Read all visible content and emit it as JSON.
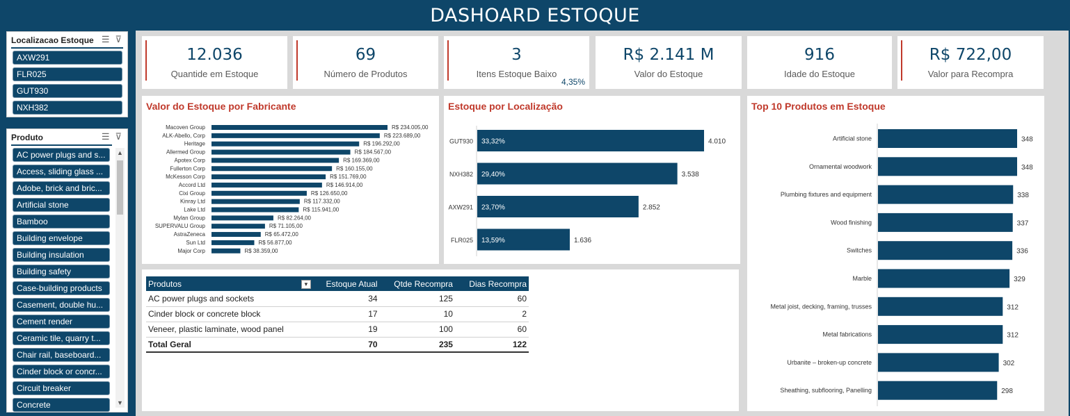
{
  "title": "DASHOARD ESTOQUE",
  "colors": {
    "navy": "#0e4669",
    "accent_red": "#c0392b"
  },
  "kpis": [
    {
      "value": "12.036",
      "label": "Quantide em Estoque",
      "accent": true
    },
    {
      "value": "69",
      "label": "Número de Produtos",
      "accent": true
    },
    {
      "value": "3",
      "label": "Itens Estoque Baixo",
      "sub": "4,35%",
      "accent": true
    },
    {
      "value": "R$ 2.141 M",
      "label": "Valor do Estoque",
      "accent": false
    },
    {
      "value": "916",
      "label": "Idade do Estoque",
      "accent": false
    },
    {
      "value": "R$ 722,00",
      "label": "Valor para Recompra",
      "accent": true
    }
  ],
  "slicer_location": {
    "header": "Localizacao Estoque",
    "items": [
      "AXW291",
      "FLR025",
      "GUT930",
      "NXH382"
    ]
  },
  "slicer_product": {
    "header": "Produto",
    "items": [
      "AC power plugs and s...",
      "Access, sliding glass ...",
      "Adobe, brick and bric...",
      "Artificial stone",
      "Bamboo",
      "Building envelope",
      "Building insulation",
      "Building safety",
      "Case-building products",
      "Casement, double hu...",
      "Cement render",
      "Ceramic tile, quarry t...",
      "Chair rail, baseboard...",
      "Cinder block or concr...",
      "Circuit breaker",
      "Concrete"
    ]
  },
  "table": {
    "headers": [
      "Produtos",
      "Estoque Atual",
      "Qtde Recompra",
      "Dias Recompra"
    ],
    "rows": [
      [
        "AC power plugs and sockets",
        "34",
        "125",
        "60"
      ],
      [
        "Cinder block or concrete block",
        "17",
        "10",
        "2"
      ],
      [
        "Veneer, plastic laminate, wood panel",
        "19",
        "100",
        "60"
      ]
    ],
    "total": [
      "Total Geral",
      "70",
      "235",
      "122"
    ]
  },
  "chart_data": [
    {
      "type": "bar",
      "orientation": "horizontal",
      "title": "Valor do Estoque por Fabricante",
      "categories": [
        "Macoven Group",
        "ALK-Abello, Corp",
        "Heritage",
        "Allermed Group",
        "Apotex Corp",
        "Fullerton Corp",
        "McKesson Corp",
        "Accord Ltd",
        "Cixi Group",
        "Kinray Ltd",
        "Lake Ltd",
        "Mylan Group",
        "SUPERVALU Group",
        "AstraZeneca",
        "Sun Ltd",
        "Major Corp"
      ],
      "values": [
        234005,
        223689,
        196292,
        184567,
        169369,
        160155,
        151769,
        146914,
        126650,
        117332,
        115941,
        82264,
        71105,
        65472,
        56877,
        38359
      ],
      "data_labels": [
        "R$ 234.005,00",
        "R$ 223.689,00",
        "R$ 196.292,00",
        "R$ 184.567,00",
        "R$ 169.369,00",
        "R$ 160.155,00",
        "R$ 151.769,00",
        "R$ 146.914,00",
        "R$ 126.650,00",
        "R$ 117.332,00",
        "R$ 115.941,00",
        "R$ 82.264,00",
        "R$ 71.105,00",
        "R$ 65.472,00",
        "R$ 56.877,00",
        "R$ 38.359,00"
      ],
      "color": "#0e4669"
    },
    {
      "type": "bar",
      "orientation": "horizontal",
      "title": "Estoque por Localização",
      "categories": [
        "GUT930",
        "NXH382",
        "AXW291",
        "FLR025"
      ],
      "values": [
        4010,
        3538,
        2852,
        1636
      ],
      "data_labels": [
        "4.010",
        "3.538",
        "2.852",
        "1.636"
      ],
      "percent_labels": [
        "33,32%",
        "29,40%",
        "23,70%",
        "13,59%"
      ],
      "color": "#0e4669"
    },
    {
      "type": "bar",
      "orientation": "horizontal",
      "title": "Top 10 Produtos em Estoque",
      "categories": [
        "Artificial stone",
        "Ornamental woodwork",
        "Plumbing fixtures and equipment",
        "Wood finishing",
        "Switches",
        "Marble",
        "Metal joist, decking, framing, trusses",
        "Metal fabrications",
        "Urbanite – broken-up concrete",
        "Sheathing, subflooring, Panelling"
      ],
      "values": [
        348,
        348,
        338,
        337,
        336,
        329,
        312,
        312,
        302,
        298
      ],
      "data_labels": [
        "348",
        "348",
        "338",
        "337",
        "336",
        "329",
        "312",
        "312",
        "302",
        "298"
      ],
      "color": "#0e4669"
    }
  ]
}
